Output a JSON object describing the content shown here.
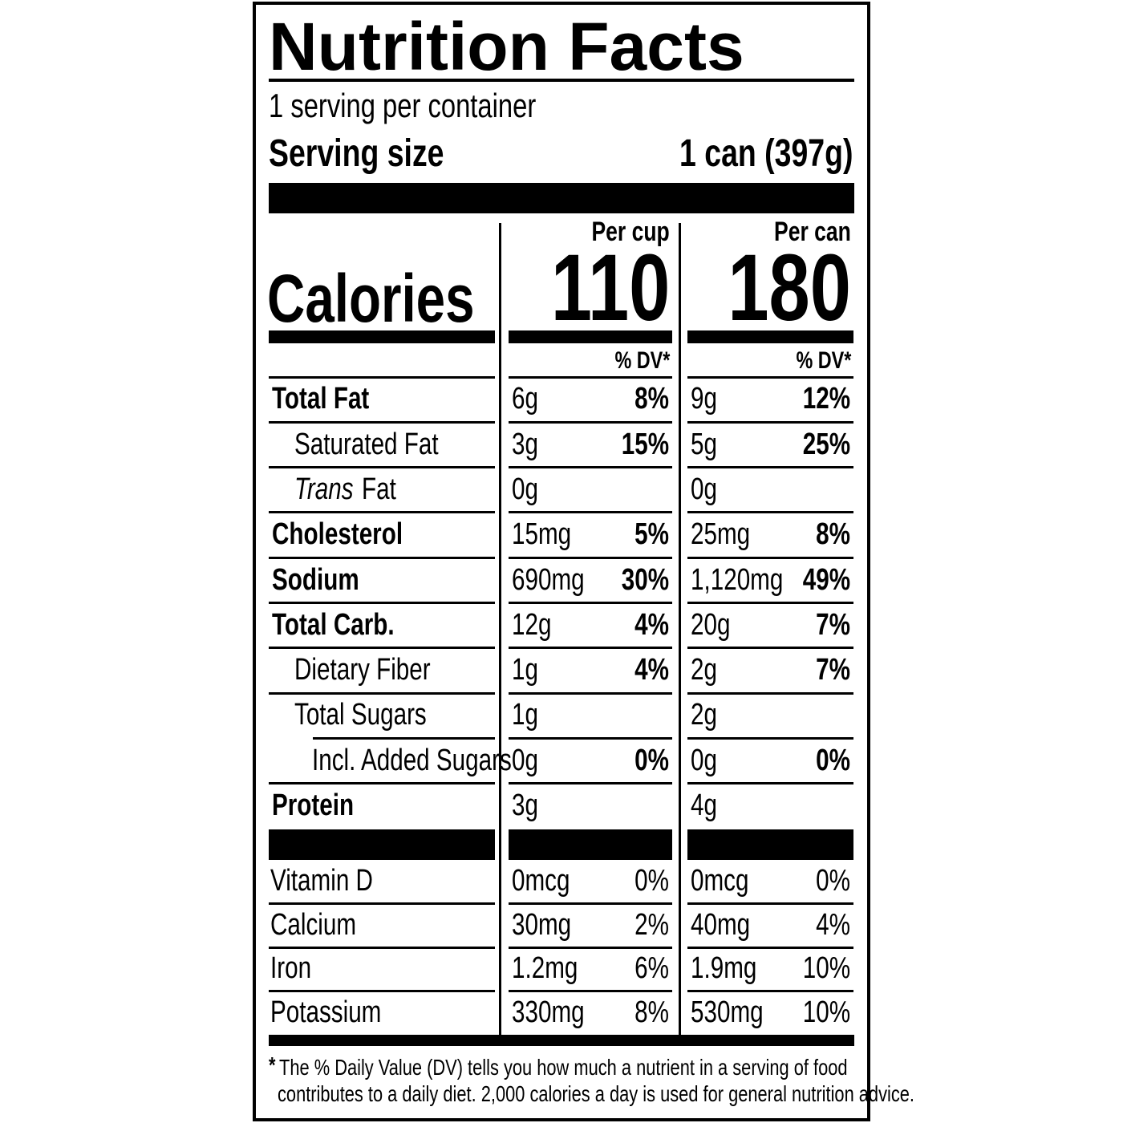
{
  "header": {
    "title": "Nutrition Facts",
    "servings": "1 serving per container",
    "serving_size_label": "Serving size",
    "serving_size": "1 can (397g)"
  },
  "calories_label": "Calories",
  "columns": [
    {
      "heading": "Per cup",
      "calories": "110"
    },
    {
      "heading": "Per can",
      "calories": "180"
    }
  ],
  "dv_header": "% DV*",
  "nutrients": [
    {
      "name": "Total Fat",
      "bold": true,
      "indent": 0,
      "amounts": [
        "6g",
        "9g"
      ],
      "dv": [
        "8%",
        "12%"
      ]
    },
    {
      "name": "Saturated Fat",
      "bold": false,
      "indent": 1,
      "amounts": [
        "3g",
        "5g"
      ],
      "dv": [
        "15%",
        "25%"
      ]
    },
    {
      "name_italic": "Trans",
      "name": "Fat",
      "bold": false,
      "indent": 1,
      "amounts": [
        "0g",
        "0g"
      ]
    },
    {
      "name": "Cholesterol",
      "bold": true,
      "indent": 0,
      "amounts": [
        "15mg",
        "25mg"
      ],
      "dv": [
        "5%",
        "8%"
      ]
    },
    {
      "name": "Sodium",
      "bold": true,
      "indent": 0,
      "amounts": [
        "690mg",
        "1,120mg"
      ],
      "dv": [
        "30%",
        "49%"
      ]
    },
    {
      "name": "Total Carb.",
      "bold": true,
      "indent": 0,
      "amounts": [
        "12g",
        "20g"
      ],
      "dv": [
        "4%",
        "7%"
      ]
    },
    {
      "name": "Dietary Fiber",
      "bold": false,
      "indent": 1,
      "amounts": [
        "1g",
        "2g"
      ],
      "dv": [
        "4%",
        "7%"
      ]
    },
    {
      "name": "Total Sugars",
      "bold": false,
      "indent": 1,
      "amounts": [
        "1g",
        "2g"
      ]
    },
    {
      "name": "Incl. Added Sugars",
      "bold": false,
      "indent": 2,
      "amounts": [
        "0g",
        "0g"
      ],
      "dv": [
        "0%",
        "0%"
      ]
    },
    {
      "name": "Protein",
      "bold": true,
      "indent": 0,
      "amounts": [
        "3g",
        "4g"
      ]
    }
  ],
  "vitamins": [
    {
      "name": "Vitamin D",
      "amounts": [
        "0mcg",
        "0mcg"
      ],
      "dv": [
        "0%",
        "0%"
      ]
    },
    {
      "name": "Calcium",
      "amounts": [
        "30mg",
        "40mg"
      ],
      "dv": [
        "2%",
        "4%"
      ]
    },
    {
      "name": "Iron",
      "amounts": [
        "1.2mg",
        "1.9mg"
      ],
      "dv": [
        "6%",
        "10%"
      ]
    },
    {
      "name": "Potassium",
      "amounts": [
        "330mg",
        "530mg"
      ],
      "dv": [
        "8%",
        "10%"
      ]
    }
  ],
  "footnote": {
    "mark": "*",
    "lines": [
      "The % Daily Value (DV) tells you how much a nutrient in a serving of food",
      "contributes to a daily diet. 2,000 calories a day is used for general nutrition advice."
    ]
  }
}
